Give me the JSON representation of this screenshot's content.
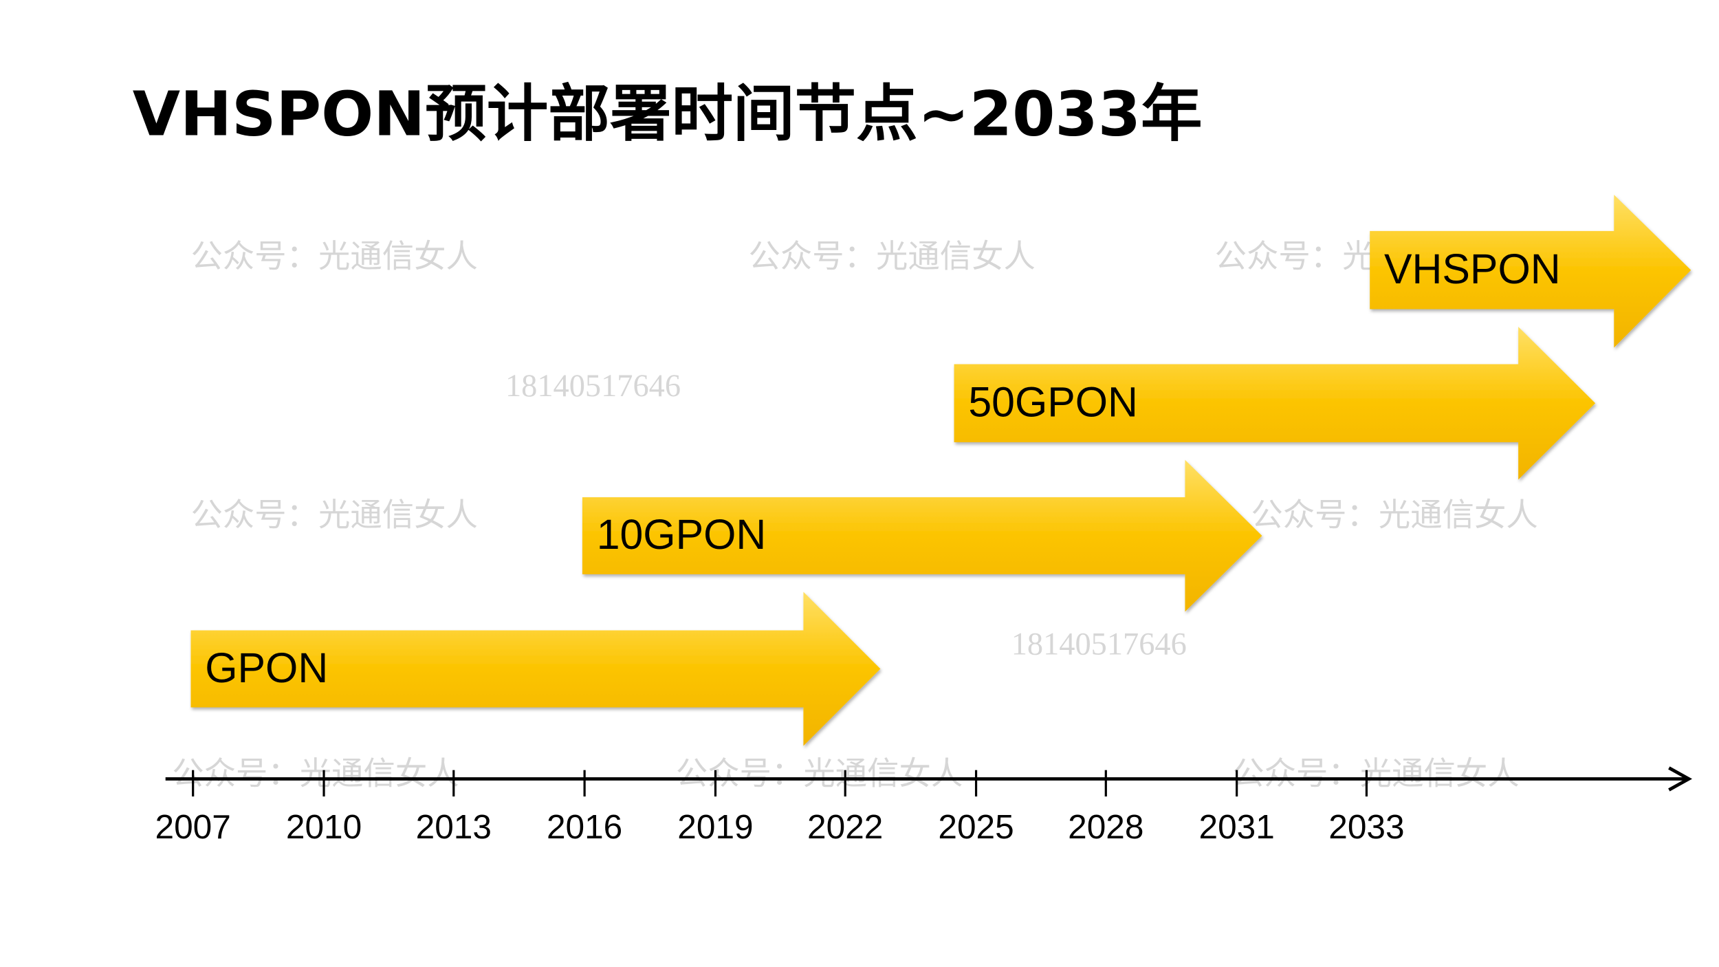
{
  "header": {
    "title": "VHSPON预计部署时间节点~2033年"
  },
  "arrows": [
    "GPON",
    "10GPON",
    "50GPON",
    "VHSPON"
  ],
  "timeline": [
    "2007",
    "2010",
    "2013",
    "2016",
    "2019",
    "2022",
    "2025",
    "2028",
    "2031",
    "2033"
  ],
  "watermarks": {
    "account": "公众号：光通信女人",
    "phone": "18140517646"
  }
}
